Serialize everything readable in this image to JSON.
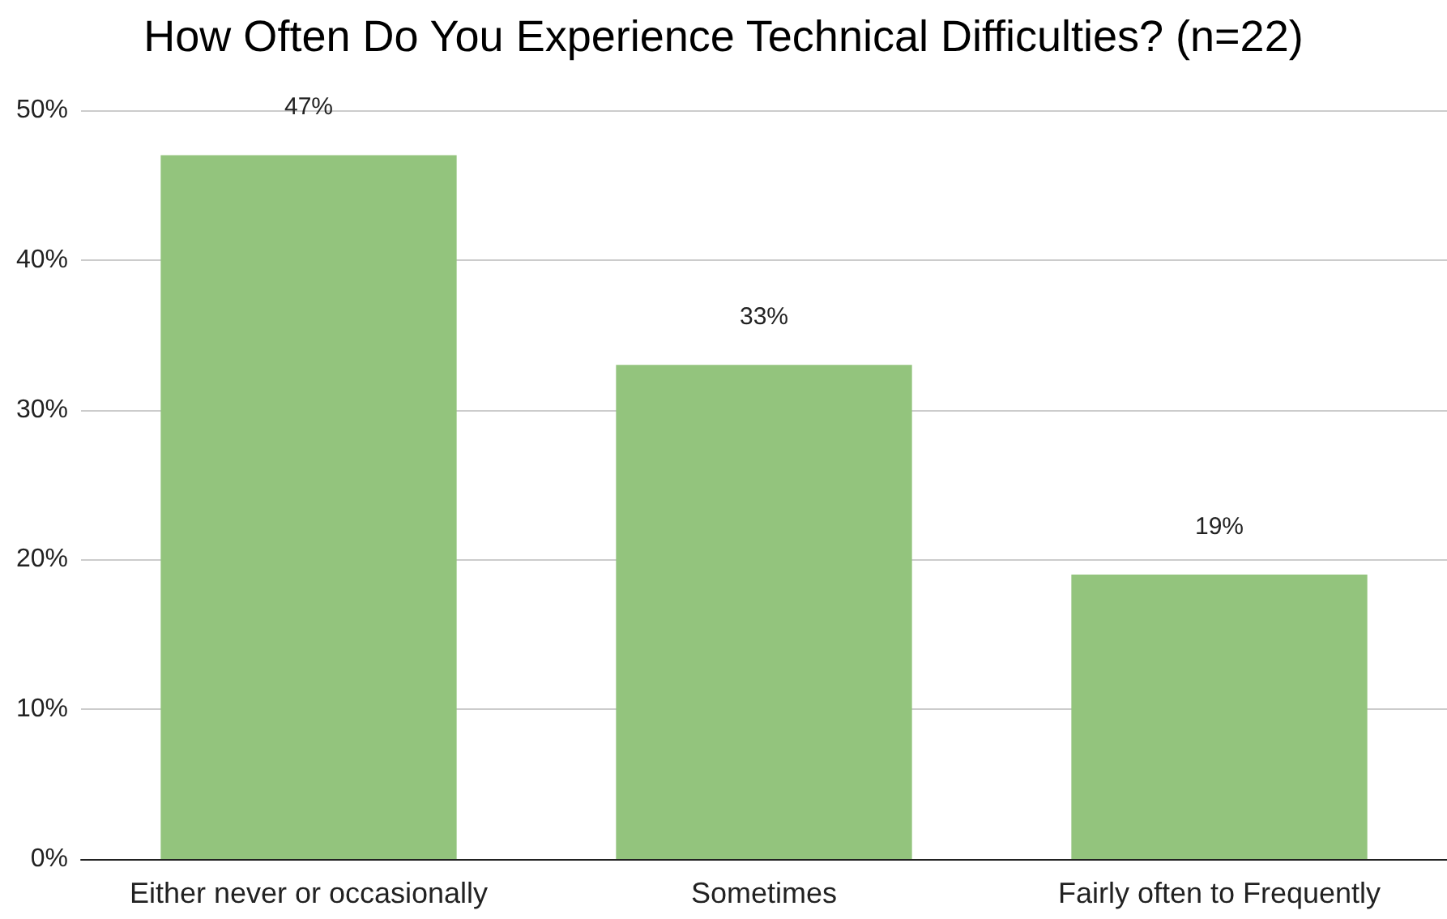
{
  "chart_data": {
    "type": "bar",
    "title": "How Often Do You Experience Technical Difficulties? (n=22)",
    "categories": [
      "Either never or occasionally",
      "Sometimes",
      "Fairly often to Frequently"
    ],
    "values": [
      47,
      33,
      19
    ],
    "color": "#93c47d",
    "value_labels": [
      "47%",
      "33%",
      "19%"
    ],
    "ylim": [
      0,
      50
    ],
    "yticks": [
      {
        "value": 0,
        "label": "0%"
      },
      {
        "value": 10,
        "label": "10%"
      },
      {
        "value": 20,
        "label": "20%"
      },
      {
        "value": 30,
        "label": "30%"
      },
      {
        "value": 40,
        "label": "40%"
      },
      {
        "value": 50,
        "label": "50%"
      }
    ],
    "grid": "y"
  }
}
